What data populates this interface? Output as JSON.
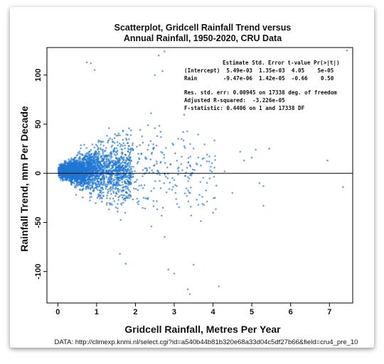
{
  "chart_data": {
    "type": "scatter",
    "title_lines": [
      "Scatterplot, Gridcell Rainfall Trend versus",
      "Annual Rainfall, 1950-2020, CRU Data"
    ],
    "xlabel": "Gridcell Rainfall, Metres Per Year",
    "ylabel": "Rainfall Trend, mm Per Decade",
    "xlim": [
      -0.28,
      7.6
    ],
    "ylim": [
      -132,
      128
    ],
    "xticks": [
      0,
      1,
      2,
      3,
      4,
      5,
      6,
      7
    ],
    "yticks": [
      -100,
      -50,
      0,
      50,
      100
    ],
    "reference_line_y": 0,
    "point_color": "#1f77d4",
    "n_points_shown": 17340,
    "outliers": [
      {
        "x": 2.75,
        "y": 124
      },
      {
        "x": 2.6,
        "y": 120
      },
      {
        "x": 0.75,
        "y": 113
      },
      {
        "x": 0.85,
        "y": 112
      },
      {
        "x": 0.95,
        "y": 105
      },
      {
        "x": 2.5,
        "y": 100
      },
      {
        "x": 2.7,
        "y": 104
      },
      {
        "x": 7.45,
        "y": 125
      },
      {
        "x": 3.4,
        "y": -123
      },
      {
        "x": 3.35,
        "y": -118
      },
      {
        "x": 4.15,
        "y": -115
      },
      {
        "x": 3.0,
        "y": -102
      },
      {
        "x": 2.85,
        "y": -98
      },
      {
        "x": 3.5,
        "y": -93
      },
      {
        "x": 1.6,
        "y": -82
      },
      {
        "x": 1.75,
        "y": -92
      },
      {
        "x": 4.7,
        "y": 22
      },
      {
        "x": 5.1,
        "y": 24
      },
      {
        "x": 5.45,
        "y": 25
      },
      {
        "x": 6.95,
        "y": 13
      },
      {
        "x": 7.35,
        "y": -14
      },
      {
        "x": 5.3,
        "y": -13
      },
      {
        "x": 5.2,
        "y": -10
      },
      {
        "x": 4.8,
        "y": 13
      },
      {
        "x": 5.3,
        "y": -33
      },
      {
        "x": 4.5,
        "y": -20
      },
      {
        "x": 4.3,
        "y": 2
      },
      {
        "x": 5.0,
        "y": 16
      },
      {
        "x": 3.9,
        "y": 12
      },
      {
        "x": 4.05,
        "y": -25
      }
    ],
    "regression_table": {
      "header": "Estimate Std. Error t-value Pr(>|t|)",
      "rows": [
        "(Intercept)  5.49e-03  1.35e-03  4.05    5e-05",
        "Rain        -9.47e-06  1.42e-05  -0.66    0.50"
      ],
      "stats": [
        "Res. std. err: 0.00945 on 17338 deg. of freedom",
        "Adjusted R-squared:  -3.226e-05",
        "F-statistic: 0.4406 on 1 and 17338 DF"
      ]
    },
    "footer": "DATA: http://climexp.knmi.nl/select.cgi?id=a540b44b81b320e68a33d04c5df27b66&field=cru4_pre_10"
  }
}
